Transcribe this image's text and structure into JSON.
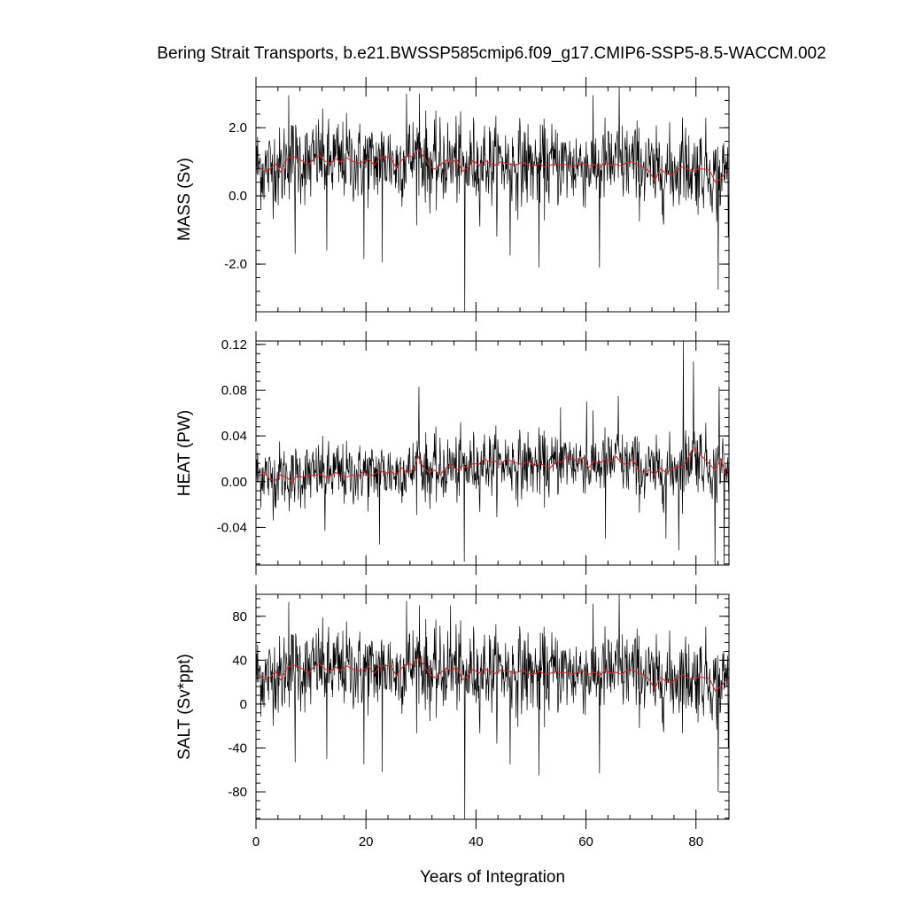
{
  "chart_data": {
    "type": "line",
    "title": "Bering Strait Transports, b.e21.BWSSP585cmip6.f09_g17.CMIP6-SSP5-8.5-WACCM.002",
    "xlabel": "Years of Integration",
    "xlim": [
      0,
      86
    ],
    "x_ticks": [
      0,
      20,
      40,
      60,
      80
    ],
    "x_tick_labels": [
      "0",
      "20",
      "40",
      "60",
      "80"
    ],
    "x_sampling": "monthly",
    "n_months": 1032,
    "colors": {
      "raw": "#000000",
      "annual_mean": "#d62728"
    },
    "panels": [
      {
        "ylabel": "MASS (Sv)",
        "ylim": [
          -3.4,
          3.2
        ],
        "y_ticks": [
          -2.0,
          0.0,
          2.0
        ],
        "y_tick_labels": [
          "-2.0",
          "0.0",
          "2.0"
        ],
        "monthly_mean": 0.95,
        "monthly_sd": 0.62,
        "monthly_extremes": [
          {
            "x": 37.9,
            "y": -3.4
          },
          {
            "x": 66.0,
            "y": 3.2
          },
          {
            "x": 84.0,
            "y": -2.75
          },
          {
            "x": 51.4,
            "y": -2.1
          },
          {
            "x": 62.4,
            "y": -2.1
          },
          {
            "x": 19.6,
            "y": -1.85
          },
          {
            "x": 22.9,
            "y": -1.95
          },
          {
            "x": 7.1,
            "y": -1.7
          },
          {
            "x": 5.9,
            "y": 2.95
          },
          {
            "x": 27.3,
            "y": 3.0
          },
          {
            "x": 29.7,
            "y": 3.0
          },
          {
            "x": 77.5,
            "y": 2.3
          },
          {
            "x": 85.8,
            "y": -1.2
          },
          {
            "x": 12.8,
            "y": -1.6
          },
          {
            "x": 46.2,
            "y": -1.75
          }
        ],
        "annual_mean": [
          0.85,
          0.72,
          0.78,
          0.95,
          0.7,
          1.05,
          1.18,
          1.1,
          1.02,
          0.9,
          1.08,
          1.2,
          1.02,
          0.95,
          1.1,
          0.98,
          1.12,
          1.02,
          0.95,
          1.0,
          1.08,
          0.9,
          1.12,
          1.15,
          1.12,
          0.82,
          1.05,
          1.2,
          1.15,
          1.38,
          1.15,
          0.9,
          0.78,
          0.9,
          1.05,
          0.95,
          1.08,
          0.72,
          0.82,
          1.05,
          0.88,
          1.05,
          0.95,
          0.9,
          1.0,
          0.95,
          0.92,
          0.92,
          1.0,
          0.9,
          0.88,
          0.95,
          0.85,
          0.9,
          0.95,
          0.9,
          0.92,
          0.85,
          0.92,
          0.95,
          0.88,
          0.92,
          0.82,
          1.0,
          0.9,
          0.92,
          0.88,
          1.0,
          1.0,
          0.88,
          0.85,
          0.72,
          0.45,
          0.78,
          0.68,
          0.6,
          0.75,
          0.85,
          0.78,
          0.72,
          0.8,
          0.78,
          0.75,
          0.4,
          0.5,
          0.7
        ]
      },
      {
        "ylabel": "HEAT (PW)",
        "ylim": [
          -0.073,
          0.123
        ],
        "y_ticks": [
          -0.04,
          0.0,
          0.04,
          0.08,
          0.12
        ],
        "y_tick_labels": [
          "-0.04",
          "0.00",
          "0.04",
          "0.08",
          "0.12"
        ],
        "monthly_mean": 0.01,
        "monthly_sd": 0.014,
        "monthly_extremes": [
          {
            "x": 77.7,
            "y": 0.123
          },
          {
            "x": 79.5,
            "y": 0.105
          },
          {
            "x": 29.6,
            "y": 0.083
          },
          {
            "x": 84.2,
            "y": 0.083
          },
          {
            "x": 85.1,
            "y": -0.073
          },
          {
            "x": 83.4,
            "y": -0.073
          },
          {
            "x": 37.8,
            "y": -0.07
          },
          {
            "x": 76.8,
            "y": -0.06
          },
          {
            "x": 22.4,
            "y": -0.055
          },
          {
            "x": 63.5,
            "y": -0.05
          },
          {
            "x": 12.5,
            "y": -0.043
          },
          {
            "x": 65.8,
            "y": 0.075
          },
          {
            "x": 60.1,
            "y": 0.07
          },
          {
            "x": 55.3,
            "y": 0.065
          },
          {
            "x": 74.5,
            "y": -0.05
          }
        ],
        "annual_mean": [
          0.005,
          0.008,
          0.002,
          0.001,
          0.006,
          0.004,
          0.0,
          0.005,
          0.004,
          0.006,
          0.005,
          0.007,
          0.004,
          0.005,
          0.008,
          0.005,
          0.004,
          0.006,
          0.004,
          0.009,
          0.005,
          0.006,
          0.01,
          0.007,
          0.009,
          0.006,
          0.012,
          0.008,
          0.01,
          0.022,
          0.012,
          0.008,
          0.01,
          0.006,
          0.012,
          0.015,
          0.01,
          0.014,
          0.012,
          0.016,
          0.015,
          0.02,
          0.017,
          0.018,
          0.015,
          0.02,
          0.018,
          0.016,
          0.015,
          0.018,
          0.014,
          0.016,
          0.014,
          0.012,
          0.018,
          0.017,
          0.022,
          0.02,
          0.018,
          0.021,
          0.012,
          0.018,
          0.016,
          0.02,
          0.018,
          0.022,
          0.016,
          0.015,
          0.02,
          0.01,
          0.008,
          0.01,
          0.006,
          0.012,
          0.008,
          0.01,
          0.014,
          0.012,
          0.02,
          0.03,
          0.025,
          0.02,
          0.015,
          0.01,
          0.02,
          0.005
        ]
      },
      {
        "ylabel": "SALT (Sv*ppt)",
        "ylim": [
          -105,
          100
        ],
        "y_ticks": [
          -80,
          -40,
          0,
          40,
          80
        ],
        "y_tick_labels": [
          "-80",
          "-40",
          "0",
          "40",
          "80"
        ],
        "monthly_mean": 30,
        "monthly_sd": 19,
        "monthly_extremes": [
          {
            "x": 37.9,
            "y": -105
          },
          {
            "x": 66.0,
            "y": 100
          },
          {
            "x": 84.0,
            "y": -80
          },
          {
            "x": 51.4,
            "y": -65
          },
          {
            "x": 62.4,
            "y": -63
          },
          {
            "x": 19.6,
            "y": -55
          },
          {
            "x": 22.9,
            "y": -62
          },
          {
            "x": 7.1,
            "y": -53
          },
          {
            "x": 5.9,
            "y": 93
          },
          {
            "x": 27.3,
            "y": 94
          },
          {
            "x": 29.7,
            "y": 90
          },
          {
            "x": 35.3,
            "y": 90
          },
          {
            "x": 85.8,
            "y": -40
          },
          {
            "x": 12.8,
            "y": -50
          },
          {
            "x": 46.2,
            "y": -55
          }
        ],
        "annual_mean": [
          27,
          22,
          24,
          30,
          22,
          32,
          36,
          34,
          32,
          28,
          34,
          37,
          32,
          30,
          34,
          30,
          35,
          32,
          30,
          31,
          34,
          28,
          35,
          35,
          35,
          26,
          33,
          37,
          36,
          42,
          36,
          28,
          24,
          28,
          33,
          30,
          34,
          22,
          26,
          32,
          28,
          32,
          30,
          28,
          31,
          30,
          29,
          29,
          31,
          28,
          27,
          30,
          27,
          28,
          30,
          28,
          29,
          27,
          29,
          30,
          27,
          29,
          26,
          31,
          28,
          29,
          27,
          31,
          31,
          28,
          27,
          22,
          14,
          24,
          21,
          19,
          23,
          27,
          24,
          22,
          25,
          24,
          23,
          12,
          16,
          22
        ]
      }
    ]
  }
}
